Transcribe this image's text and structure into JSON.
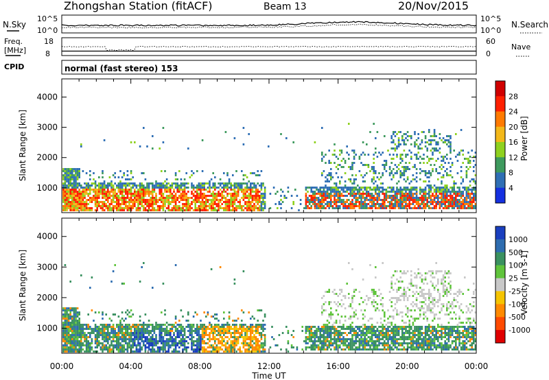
{
  "header": {
    "station": "Zhongshan Station (fitACF)",
    "beam": "Beam 13",
    "date": "20/Nov/2015"
  },
  "top_panels": {
    "nsky_label": "N.Sky",
    "nsearch_label": "N.Search",
    "freq_label_1": "Freq.",
    "freq_label_2": "[MHz]",
    "nave_label": "Nave",
    "cpid_label": "CPID",
    "mode_text": "normal (fast stereo) 153",
    "noise_ticks_left": [
      "10^5",
      "10^0"
    ],
    "noise_ticks_right": [
      "10^5",
      "10^0"
    ],
    "freq_ticks": [
      "18",
      "8"
    ],
    "nave_ticks": [
      "60",
      "0"
    ]
  },
  "chart_data": [
    {
      "type": "heatmap",
      "title": "",
      "xlabel": "Time UT",
      "ylabel": "Slant Range [km]",
      "colorbar_label": "Power [dB]",
      "colorbar_ticks": [
        "28",
        "24",
        "20",
        "16",
        "12",
        "8",
        "4"
      ],
      "colorbar_colors": [
        "#d00000",
        "#ff2000",
        "#ff7a00",
        "#f3b81a",
        "#8fd11f",
        "#3e9a5e",
        "#2f6fb5",
        "#1530e0"
      ],
      "x_ticks": [
        "00:00",
        "04:00",
        "08:00",
        "12:00",
        "16:00",
        "20:00",
        "00:00"
      ],
      "y_ticks": [
        "4000",
        "3000",
        "2000",
        "1000"
      ],
      "xlim": [
        0,
        24
      ],
      "ylim": [
        180,
        4600
      ]
    },
    {
      "type": "heatmap",
      "title": "",
      "xlabel": "Time UT",
      "ylabel": "Slant Range [km]",
      "colorbar_label": "Velocity [m s-1]",
      "colorbar_ticks": [
        "1000",
        "500",
        "100",
        "25",
        "-25",
        "-100",
        "-500",
        "-1000"
      ],
      "colorbar_colors": [
        "#1a3fbf",
        "#2e6db0",
        "#3a9160",
        "#60c43c",
        "#c8c8c8",
        "#f5c400",
        "#ff8a00",
        "#ff4a00",
        "#e00000"
      ],
      "x_ticks": [
        "00:00",
        "04:00",
        "08:00",
        "12:00",
        "16:00",
        "20:00",
        "00:00"
      ],
      "y_ticks": [
        "4000",
        "3000",
        "2000",
        "1000"
      ],
      "xlim": [
        0,
        24
      ],
      "ylim": [
        180,
        4600
      ]
    }
  ]
}
